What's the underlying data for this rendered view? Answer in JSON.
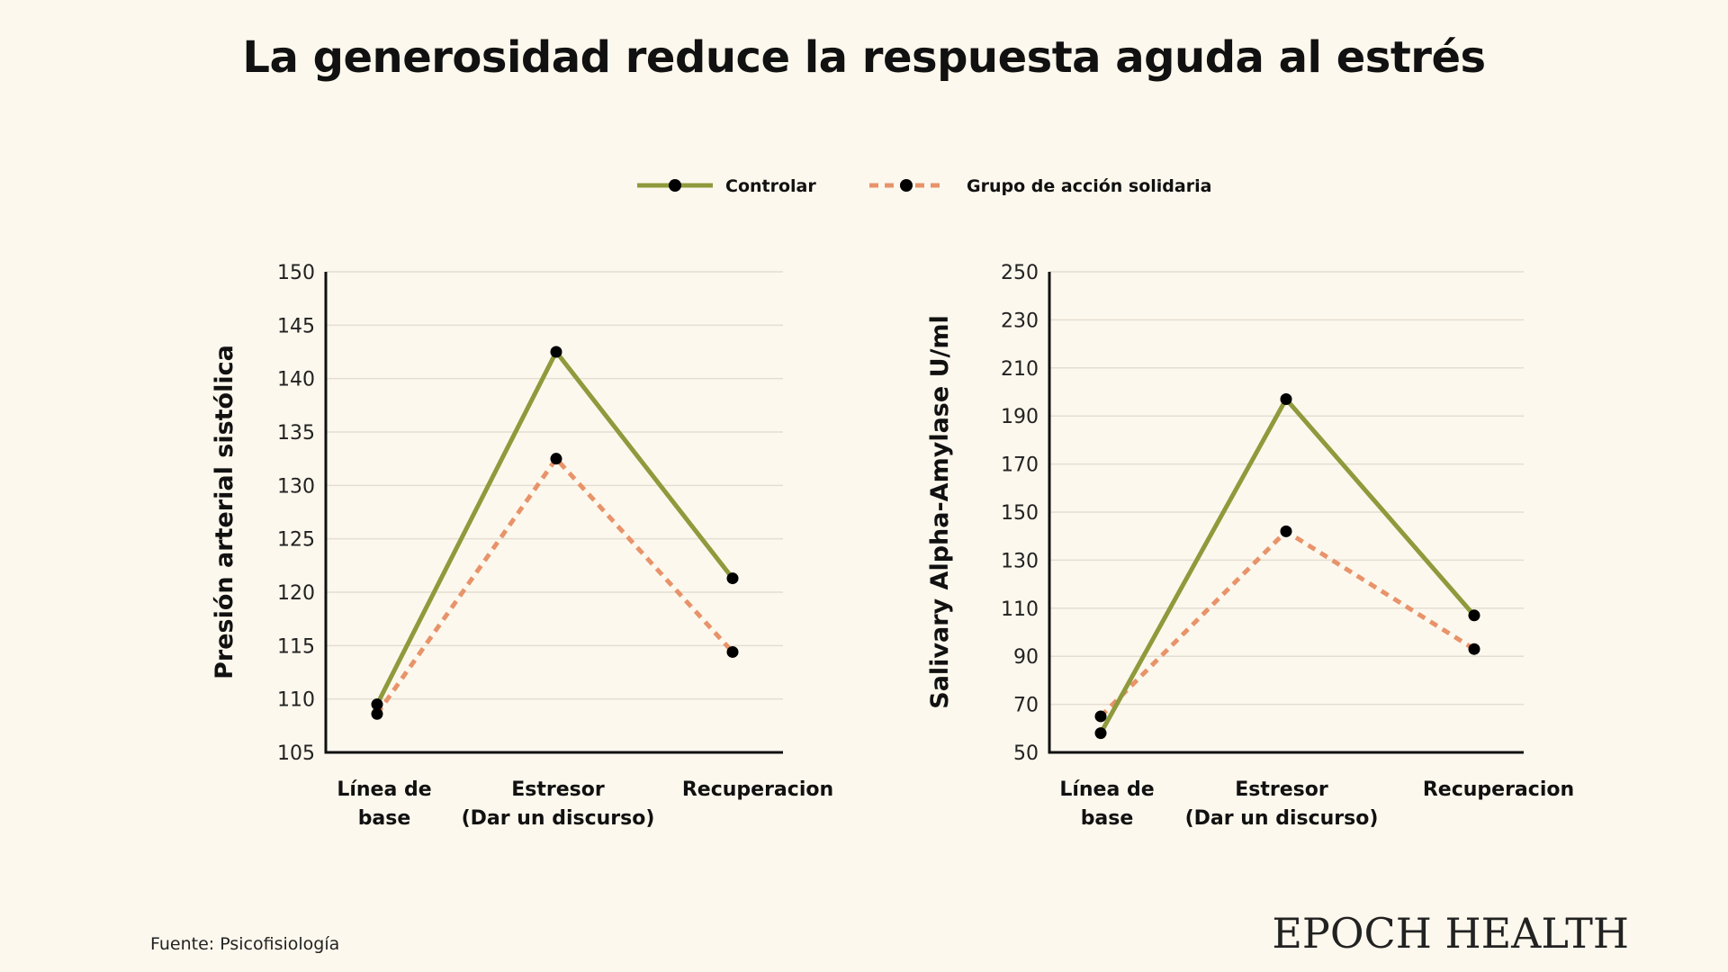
{
  "title": "La generosidad reduce la respuesta aguda al estrés",
  "legend": [
    {
      "name": "Controlar",
      "color": "#8f9a3c",
      "style": "solid"
    },
    {
      "name": "Grupo de acción solidaria",
      "color": "#e8936a",
      "style": "dashed"
    }
  ],
  "source": "Fuente: Psicofisiología",
  "brand": "EPOCH HEALTH",
  "chart_data": [
    {
      "type": "line",
      "ylabel": "Presión arterial sistólica",
      "ylim": [
        105,
        150
      ],
      "yticks": [
        105,
        110,
        115,
        120,
        125,
        130,
        135,
        140,
        145,
        150
      ],
      "categories": [
        [
          "Línea de",
          "base"
        ],
        [
          "Estresor",
          "(Dar un discurso)"
        ],
        [
          "Recuperacion"
        ]
      ],
      "series": [
        {
          "name": "Controlar",
          "values": [
            109.5,
            142.5,
            121.3
          ]
        },
        {
          "name": "Grupo de acción solidaria",
          "values": [
            108.6,
            132.5,
            114.4
          ]
        }
      ]
    },
    {
      "type": "line",
      "ylabel": "Salivary Alpha-Amylase U/ml",
      "ylim": [
        50,
        250
      ],
      "yticks": [
        50,
        70,
        90,
        110,
        130,
        150,
        170,
        190,
        210,
        230,
        250
      ],
      "categories": [
        [
          "Línea de",
          "base"
        ],
        [
          "Estresor",
          "(Dar un discurso)"
        ],
        [
          "Recuperacion"
        ]
      ],
      "series": [
        {
          "name": "Controlar",
          "values": [
            58,
            197,
            107
          ]
        },
        {
          "name": "Grupo de acción solidaria",
          "values": [
            65,
            142,
            93
          ]
        }
      ]
    }
  ]
}
